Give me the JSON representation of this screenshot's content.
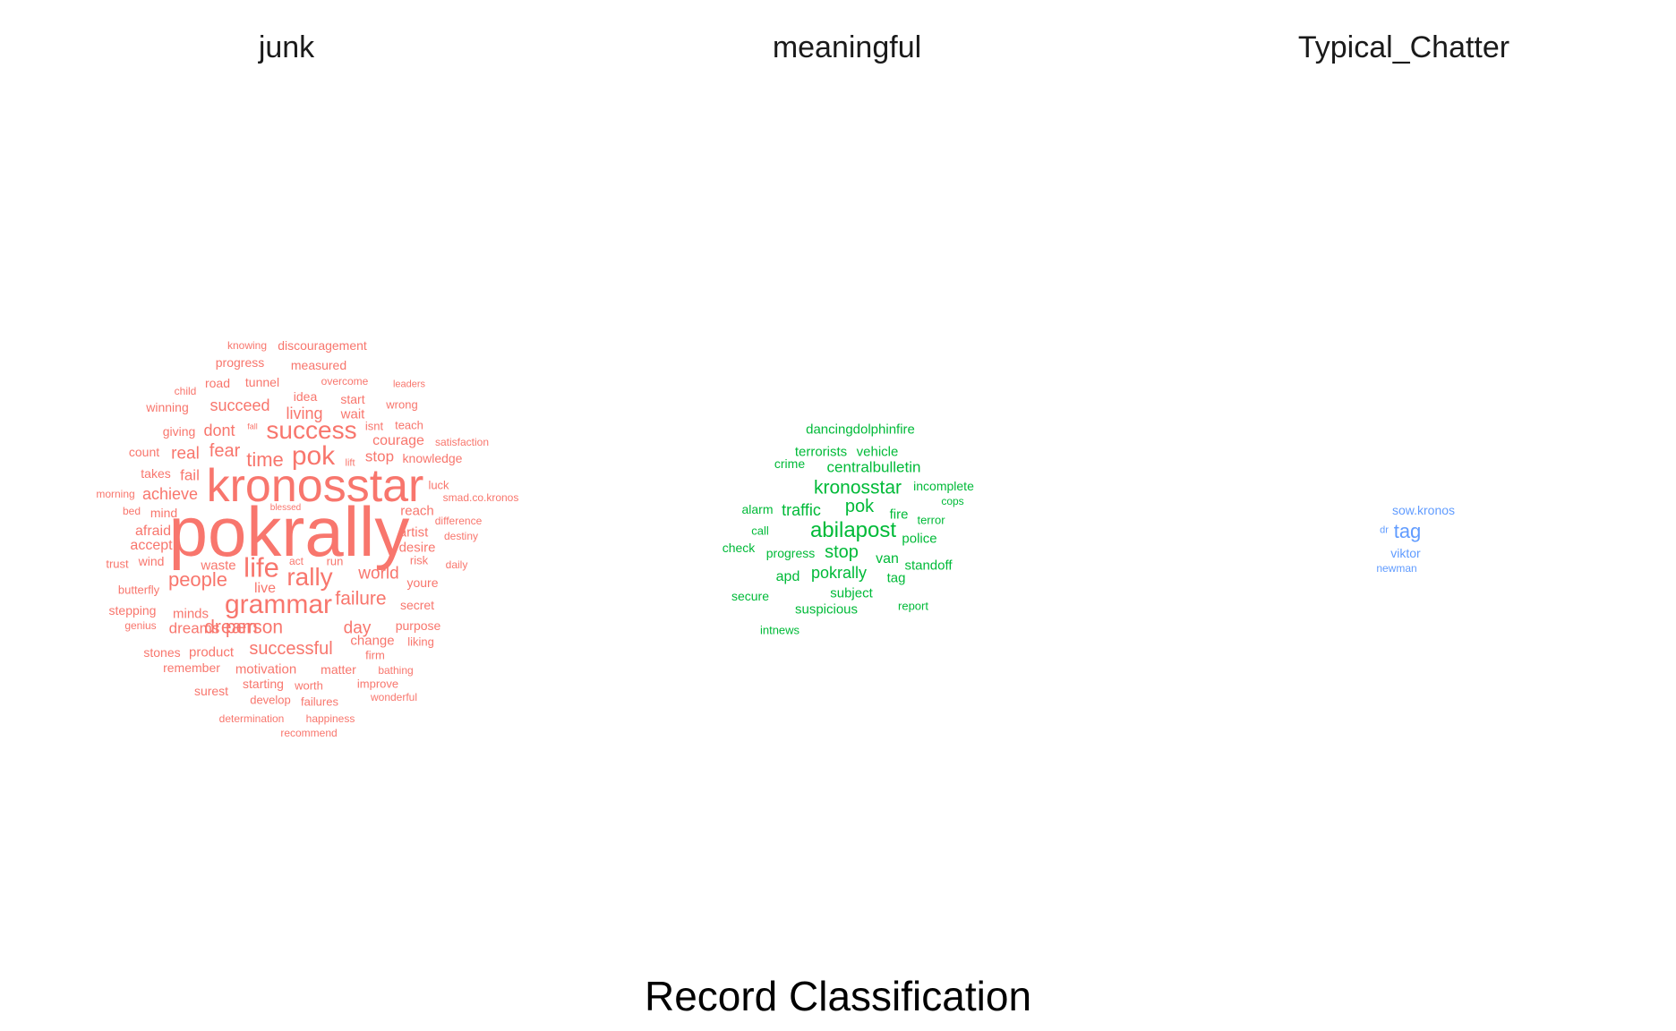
{
  "chart_data": {
    "type": "wordcloud",
    "caption": "Record Classification",
    "facets": [
      {
        "title": "junk",
        "color": "#F8766D",
        "words": [
          "pokrally",
          "kronosstar",
          "success",
          "grammar",
          "life",
          "rally",
          "pok",
          "people",
          "person",
          "dreams",
          "dream",
          "failure",
          "time",
          "living",
          "succeed",
          "fear",
          "achieve",
          "successful",
          "world",
          "day",
          "real",
          "dont",
          "fail",
          "stop",
          "courage",
          "idea",
          "start",
          "wait",
          "afraid",
          "accept",
          "artist",
          "desire",
          "reach",
          "live",
          "minds",
          "change",
          "motivation",
          "starting",
          "develop",
          "stones",
          "product",
          "remember",
          "surest",
          "worth",
          "failures",
          "matter",
          "improve",
          "wonderful",
          "bathing",
          "determination",
          "happiness",
          "recommend",
          "stepping",
          "genius",
          "butterfly",
          "trust",
          "wind",
          "waste",
          "act",
          "run",
          "risk",
          "youre",
          "secret",
          "purpose",
          "liking",
          "firm",
          "bed",
          "mind",
          "morning",
          "takes",
          "count",
          "giving",
          "winning",
          "child",
          "road",
          "tunnel",
          "progress",
          "measured",
          "knowing",
          "discouragement",
          "overcome",
          "leaders",
          "wrong",
          "teach",
          "isnt",
          "satisfaction",
          "knowledge",
          "lift",
          "luck",
          "smad.co.kronos",
          "blessed",
          "difference",
          "destiny",
          "daily",
          "fall"
        ]
      },
      {
        "title": "meaningful",
        "color": "#00BA38",
        "words": [
          "abilapost",
          "kronosstar",
          "pok",
          "stop",
          "pokrally",
          "traffic",
          "centralbulletin",
          "dancingdolphinfire",
          "terrorists",
          "vehicle",
          "crime",
          "incomplete",
          "fire",
          "cops",
          "terror",
          "police",
          "alarm",
          "call",
          "check",
          "progress",
          "van",
          "standoff",
          "apd",
          "tag",
          "subject",
          "secure",
          "suspicious",
          "report",
          "intnews"
        ]
      },
      {
        "title": "Typical_Chatter",
        "color": "#619CFF",
        "words": [
          "tag",
          "sow.kronos",
          "dr",
          "viktor",
          "newman"
        ]
      }
    ]
  }
}
